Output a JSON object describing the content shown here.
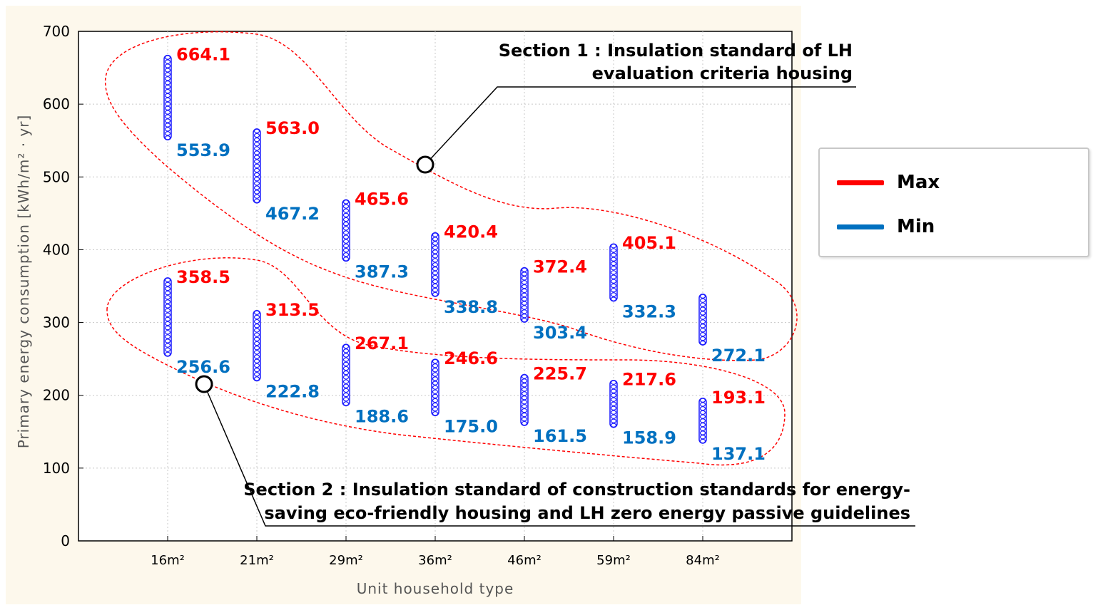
{
  "chart_data": {
    "type": "scatter",
    "xlabel": "Unit household type",
    "ylabel": "Primary energy consumption [kWh/m² · yr]",
    "categories": [
      "16m²",
      "21m²",
      "29m²",
      "36m²",
      "46m²",
      "59m²",
      "84m²"
    ],
    "ylim": [
      0,
      700
    ],
    "yticks": [
      "0",
      "100",
      "200",
      "300",
      "400",
      "500",
      "600",
      "700"
    ],
    "grid": true,
    "sections": [
      {
        "annotation": "Section 1 : Insulation standard of LH evaluation criteria housing",
        "annotation_lines": [
          "Section 1 : Insulation standard of LH",
          "evaluation criteria housing"
        ],
        "max_labels": [
          "664.1",
          "563.0",
          "465.6",
          "420.4",
          "372.4",
          "405.1",
          ""
        ],
        "min_labels": [
          "553.9",
          "467.2",
          "387.3",
          "338.8",
          "303.4",
          "332.3",
          "272.1"
        ],
        "ranges": [
          [
            553.9,
            664.1
          ],
          [
            467.2,
            563.0
          ],
          [
            387.3,
            465.6
          ],
          [
            338.8,
            420.4
          ],
          [
            303.4,
            372.4
          ],
          [
            332.3,
            405.1
          ],
          [
            272.1,
            336
          ]
        ]
      },
      {
        "annotation": "Section 2 : Insulation standard of construction standards for energy-saving eco-friendly housing and LH zero energy passive guidelines",
        "annotation_lines": [
          "Section 2 : Insulation standard of construction standards for energy-",
          "saving eco-friendly housing and LH zero energy passive guidelines"
        ],
        "max_labels": [
          "358.5",
          "313.5",
          "267.1",
          "246.6",
          "225.7",
          "217.6",
          "193.1"
        ],
        "min_labels": [
          "256.6",
          "222.8",
          "188.6",
          "175.0",
          "161.5",
          "158.9",
          "137.1"
        ],
        "ranges": [
          [
            256.6,
            358.5
          ],
          [
            222.8,
            313.5
          ],
          [
            188.6,
            267.1
          ],
          [
            175.0,
            246.6
          ],
          [
            161.5,
            225.7
          ],
          [
            158.9,
            217.6
          ],
          [
            137.1,
            193.1
          ]
        ]
      }
    ],
    "legend": {
      "position": "right",
      "entries": [
        {
          "name": "Max",
          "color": "#ff0000"
        },
        {
          "name": "Min",
          "color": "#0070c0"
        }
      ]
    },
    "colors": {
      "max_text": "#ff0000",
      "min_text": "#0070c0",
      "markers": "#1a1aff",
      "section_outline": "#ff0000",
      "plot_background": "#fdf8ec"
    }
  }
}
